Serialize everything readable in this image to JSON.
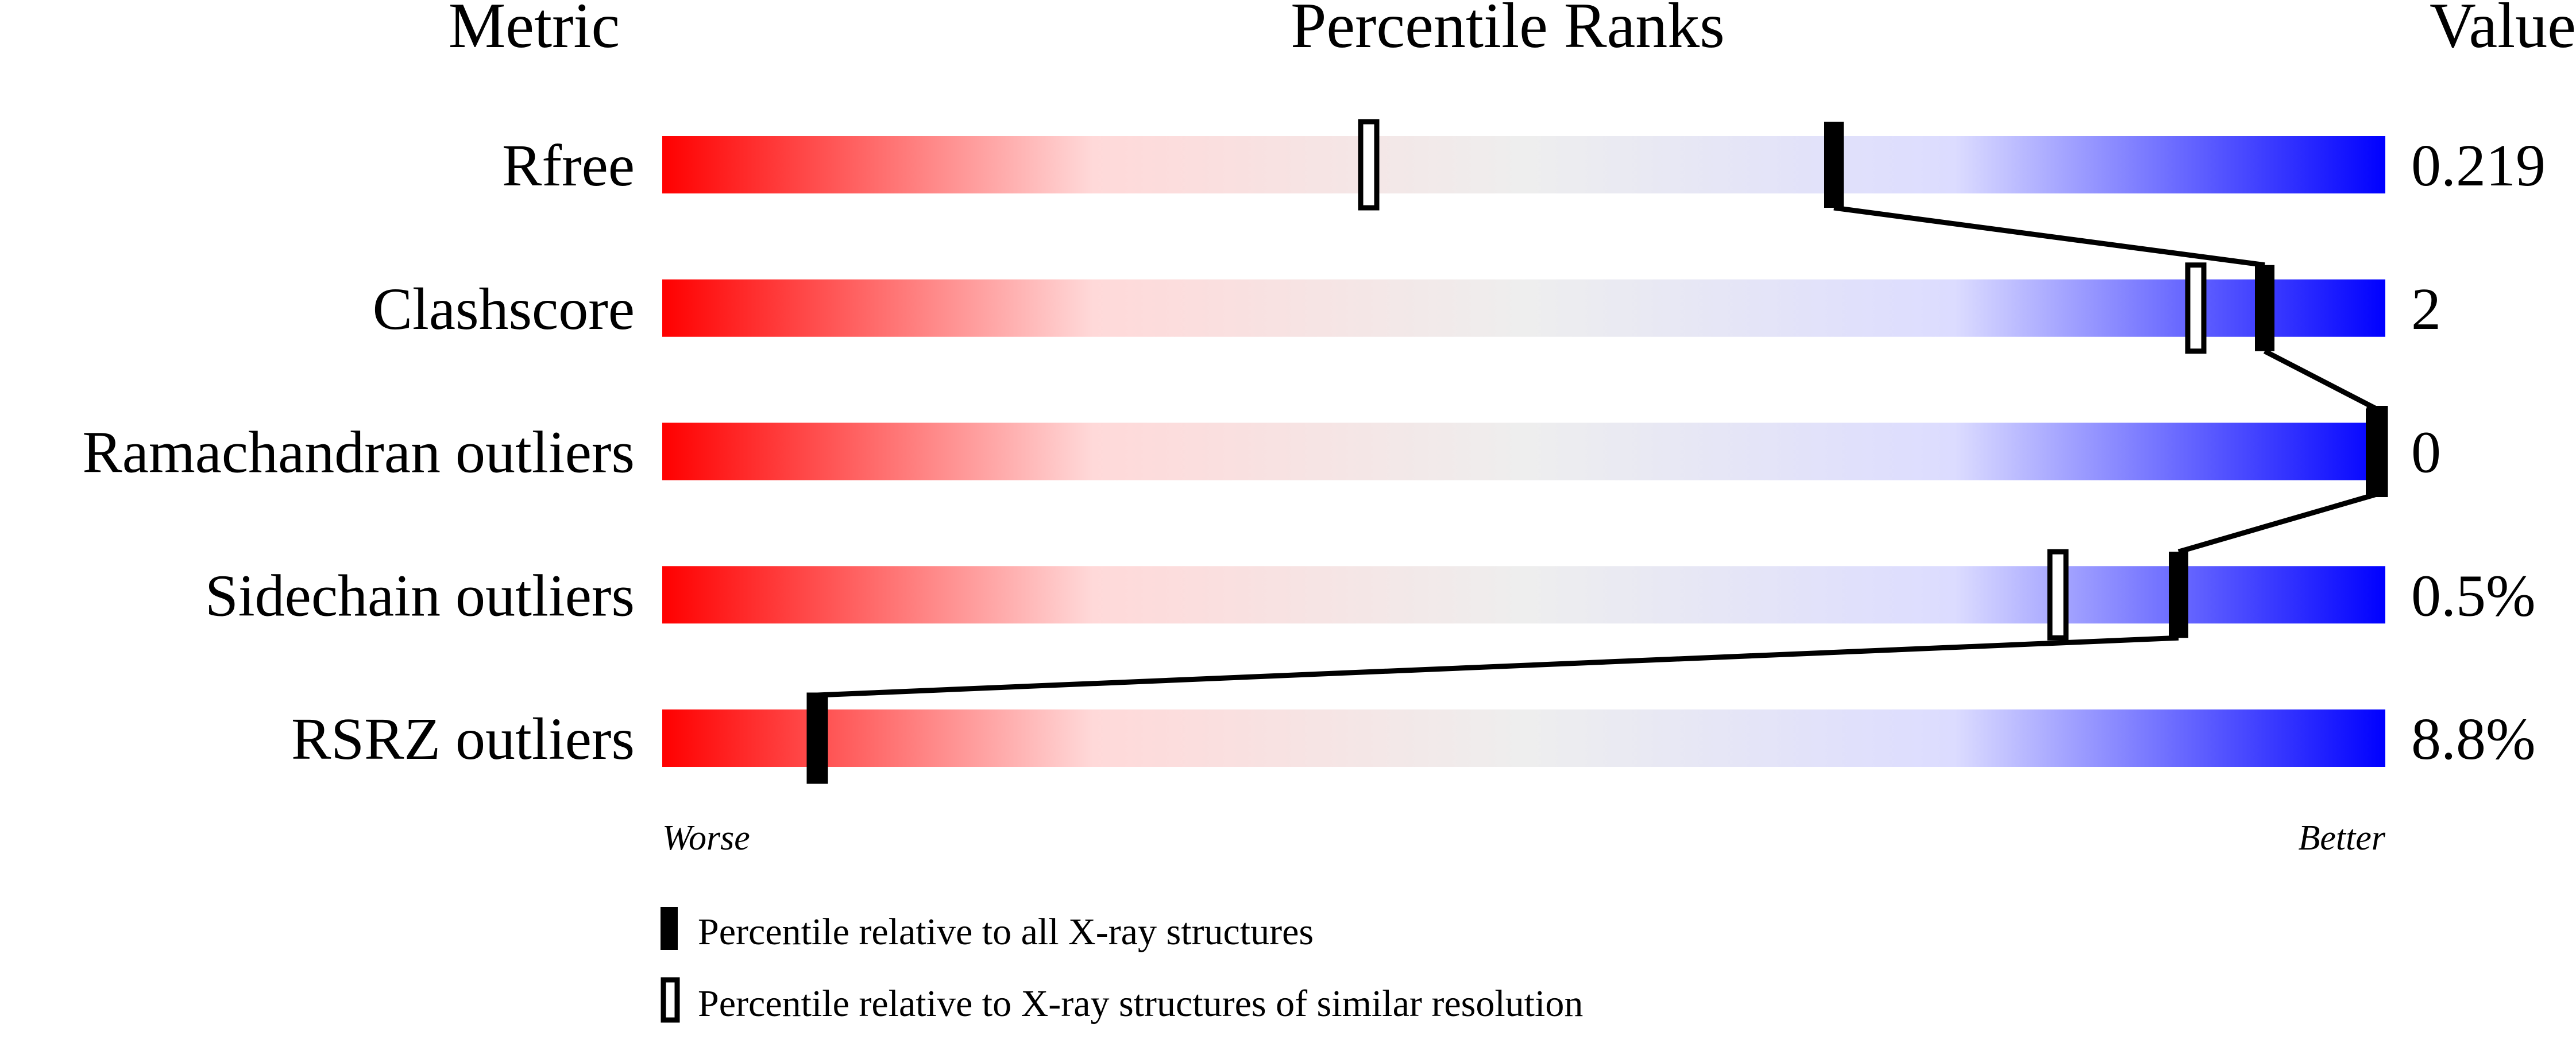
{
  "chart_data": {
    "type": "percentile-slider",
    "headers": {
      "metric": "Metric",
      "percentile": "Percentile Ranks",
      "value": "Value"
    },
    "axis": {
      "left_label": "Worse",
      "right_label": "Better",
      "range": [
        0,
        100
      ]
    },
    "gradient_colors": [
      "#ff0000",
      "#ffd9d9",
      "#eeeeee",
      "#dcdcff",
      "#0000ff"
    ],
    "metrics": [
      {
        "name": "Rfree",
        "value": "0.219",
        "percentile_all": 68,
        "percentile_similar": 41
      },
      {
        "name": "Clashscore",
        "value": "2",
        "percentile_all": 93,
        "percentile_similar": 89
      },
      {
        "name": "Ramachandran outliers",
        "value": "0",
        "percentile_all": 100,
        "percentile_similar": 100
      },
      {
        "name": "Sidechain outliers",
        "value": "0.5%",
        "percentile_all": 88,
        "percentile_similar": 81
      },
      {
        "name": "RSRZ outliers",
        "value": "8.8%",
        "percentile_all": 9,
        "percentile_similar": 9
      }
    ],
    "legend": [
      {
        "marker": "filled",
        "label": "Percentile relative to all X-ray structures"
      },
      {
        "marker": "open",
        "label": "Percentile relative to X-ray structures of similar resolution"
      }
    ]
  }
}
